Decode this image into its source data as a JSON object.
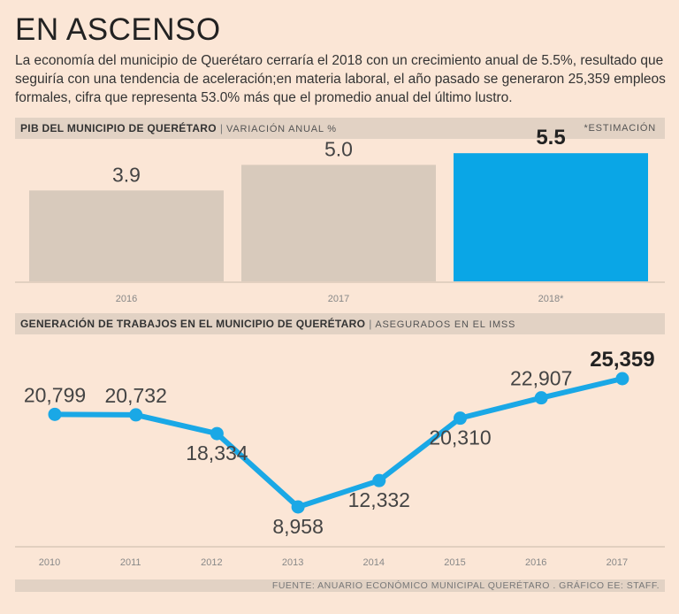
{
  "header": {
    "title": "EN ASCENSO",
    "subtitle": "La economía del municipio de Querétaro cerraría el 2018 con un crecimiento anual de 5.5%, resultado que seguiría con una tendencia de aceleración;en materia laboral, el año pasado se generaron 25,359 empleos formales, cifra que representa 53.0% más que el promedio anual del último lustro."
  },
  "section1": {
    "title": "PIB DEL MUNICIPIO DE QUERÉTARO",
    "subtitle": "VARIACIÓN ANUAL %",
    "note": "*ESTIMACIÓN"
  },
  "section2": {
    "title": "GENERACIÓN DE TRABAJOS EN EL MUNICIPIO DE QUERÉTARO",
    "subtitle": "ASEGURADOS EN EL IMSS"
  },
  "footer": {
    "source": "FUENTE: ANUARIO ECONÓMICO MUNICIPAL QUERÉTARO . GRÁFICO EE: STAFF."
  },
  "colors": {
    "bar": "#d8cabc",
    "highlight": "#0aa6e6",
    "line": "#1aa8e6"
  },
  "chart_data": [
    {
      "type": "bar",
      "title": "PIB DEL MUNICIPIO DE QUERÉTARO",
      "ylabel": "VARIACIÓN ANUAL %",
      "categories": [
        "2016",
        "2017",
        "2018*"
      ],
      "values": [
        3.9,
        5.0,
        5.5
      ],
      "labels": [
        "3.9",
        "5.0",
        "5.5"
      ],
      "highlight_index": 2,
      "ylim": [
        0,
        6
      ]
    },
    {
      "type": "line",
      "title": "GENERACIÓN DE TRABAJOS EN EL MUNICIPIO DE QUERÉTARO",
      "ylabel": "ASEGURADOS EN EL IMSS",
      "categories": [
        "2010",
        "2011",
        "2012",
        "2013",
        "2014",
        "2015",
        "2016",
        "2017"
      ],
      "values": [
        20799,
        20732,
        18334,
        8958,
        12332,
        20310,
        22907,
        25359
      ],
      "labels": [
        "20,799",
        "20,732",
        "18,334",
        "8,958",
        "12,332",
        "20,310",
        "22,907",
        "25,359"
      ],
      "highlight_index": 7
    }
  ]
}
